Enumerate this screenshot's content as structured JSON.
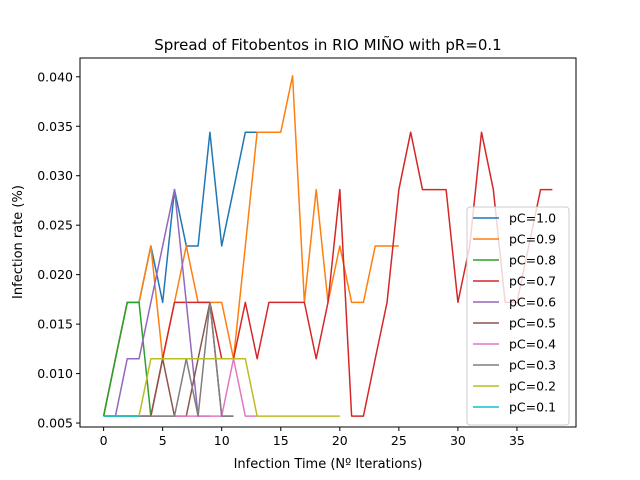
{
  "chart_data": {
    "type": "line",
    "title": "Spread of Fitobentos in RIO MIÑO with pR=0.1",
    "xlabel": "Infection Time (Nº Iterations)",
    "ylabel": "Infection rate (%)",
    "xlim": [
      -2,
      40
    ],
    "ylim": [
      0.0046,
      0.0419
    ],
    "xticks": [
      0,
      5,
      10,
      15,
      20,
      25,
      30,
      35
    ],
    "yticks": [
      0.005,
      0.01,
      0.015,
      0.02,
      0.025,
      0.03,
      0.035,
      0.04
    ],
    "ytick_labels": [
      "0.005",
      "0.010",
      "0.015",
      "0.020",
      "0.025",
      "0.030",
      "0.035",
      "0.040"
    ],
    "grid": false,
    "legend_position": "right",
    "series": [
      {
        "name": "pC=1.0",
        "color": "#1f77b4",
        "x": [
          0,
          1,
          2,
          3,
          4,
          5,
          6,
          7,
          8,
          9,
          10,
          11,
          12,
          13,
          14
        ],
        "y": [
          0.0057,
          0.0115,
          0.0172,
          0.0172,
          0.0229,
          0.0172,
          0.0286,
          0.0229,
          0.0229,
          0.0344,
          0.0229,
          0.0286,
          0.0344,
          0.0344,
          0.0344
        ]
      },
      {
        "name": "pC=0.9",
        "color": "#ff7f0e",
        "x": [
          0,
          1,
          2,
          3,
          4,
          5,
          6,
          7,
          8,
          9,
          10,
          11,
          12,
          13,
          14,
          15,
          16,
          17,
          18,
          19,
          20,
          21,
          22,
          23,
          24,
          25
        ],
        "y": [
          0.0057,
          0.0115,
          0.0172,
          0.0172,
          0.0229,
          0.0115,
          0.0172,
          0.0229,
          0.0172,
          0.0172,
          0.0172,
          0.0115,
          0.0229,
          0.0344,
          0.0344,
          0.0344,
          0.0401,
          0.0172,
          0.0286,
          0.0172,
          0.0229,
          0.0172,
          0.0172,
          0.0229,
          0.0229,
          0.0229
        ]
      },
      {
        "name": "pC=0.8",
        "color": "#2ca02c",
        "x": [
          0,
          1,
          2,
          3,
          4
        ],
        "y": [
          0.0057,
          0.0115,
          0.0172,
          0.0172,
          0.0057
        ]
      },
      {
        "name": "pC=0.7",
        "color": "#d62728",
        "x": [
          0,
          1,
          2,
          3,
          4,
          5,
          6,
          7,
          8,
          9,
          10,
          11,
          12,
          13,
          14,
          15,
          16,
          17,
          18,
          19,
          20,
          21,
          22,
          23,
          24,
          25,
          26,
          27,
          28,
          29,
          30,
          31,
          32,
          33,
          34,
          35,
          36,
          37,
          38
        ],
        "y": [
          0.0057,
          0.0057,
          0.0057,
          0.0057,
          0.0057,
          0.0115,
          0.0172,
          0.0172,
          0.0172,
          0.0172,
          0.0115,
          0.0115,
          0.0172,
          0.0115,
          0.0172,
          0.0172,
          0.0172,
          0.0172,
          0.0115,
          0.0172,
          0.0286,
          0.0057,
          0.0057,
          0.0115,
          0.0172,
          0.0286,
          0.0344,
          0.0286,
          0.0286,
          0.0286,
          0.0172,
          0.0229,
          0.0344,
          0.0286,
          0.0172,
          0.0172,
          0.0229,
          0.0286,
          0.0286
        ]
      },
      {
        "name": "pC=0.6",
        "color": "#9467bd",
        "x": [
          0,
          1,
          2,
          3,
          4,
          5,
          6,
          7,
          8,
          9
        ],
        "y": [
          0.0057,
          0.0057,
          0.0115,
          0.0115,
          0.0172,
          0.0229,
          0.0286,
          0.0172,
          0.0057,
          0.0057
        ]
      },
      {
        "name": "pC=0.5",
        "color": "#8c564b",
        "x": [
          0,
          1,
          2,
          3,
          4,
          5,
          6,
          7,
          8,
          9,
          10,
          11
        ],
        "y": [
          0.0057,
          0.0057,
          0.0057,
          0.0057,
          0.0057,
          0.0115,
          0.0057,
          0.0057,
          0.0115,
          0.0172,
          0.0057,
          0.0057
        ]
      },
      {
        "name": "pC=0.4",
        "color": "#e377c2",
        "x": [
          0,
          1,
          2,
          3,
          4,
          5,
          6,
          7,
          8,
          9,
          10,
          11,
          12,
          13
        ],
        "y": [
          0.0057,
          0.0057,
          0.0057,
          0.0057,
          0.0057,
          0.0057,
          0.0057,
          0.0057,
          0.0057,
          0.0057,
          0.0057,
          0.0115,
          0.0057,
          0.0057
        ]
      },
      {
        "name": "pC=0.3",
        "color": "#7f7f7f",
        "x": [
          0,
          1,
          2,
          3,
          4,
          5,
          6,
          7,
          8,
          9,
          10,
          11
        ],
        "y": [
          0.0057,
          0.0057,
          0.0057,
          0.0057,
          0.0057,
          0.0057,
          0.0057,
          0.0115,
          0.0057,
          0.0172,
          0.0057,
          0.0057
        ]
      },
      {
        "name": "pC=0.2",
        "color": "#bcbd22",
        "x": [
          0,
          1,
          2,
          3,
          4,
          5,
          6,
          7,
          8,
          9,
          10,
          11,
          12,
          13,
          14,
          15,
          16,
          17,
          18,
          19,
          20
        ],
        "y": [
          0.0057,
          0.0057,
          0.0057,
          0.0057,
          0.0115,
          0.0115,
          0.0115,
          0.0115,
          0.0115,
          0.0115,
          0.0115,
          0.0115,
          0.0115,
          0.0057,
          0.0057,
          0.0057,
          0.0057,
          0.0057,
          0.0057,
          0.0057,
          0.0057
        ]
      },
      {
        "name": "pC=0.1",
        "color": "#17becf",
        "x": [
          0,
          1,
          2,
          3
        ],
        "y": [
          0.0057,
          0.0057,
          0.0057,
          0.0057
        ]
      }
    ]
  }
}
